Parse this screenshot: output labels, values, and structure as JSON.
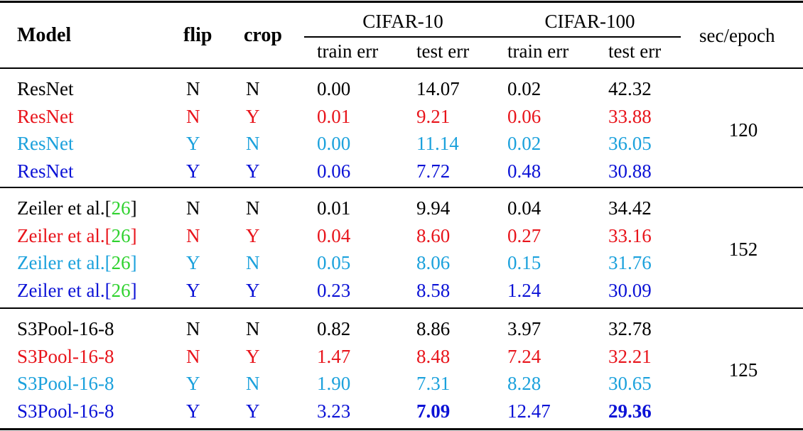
{
  "table": {
    "headers": {
      "model": "Model",
      "flip": "flip",
      "crop": "crop",
      "cifar10": "CIFAR-10",
      "cifar100": "CIFAR-100",
      "train_err": "train err",
      "test_err": "test err",
      "sec_epoch": "sec/epoch"
    },
    "colors": {
      "black": "#000000",
      "red": "#e8141b",
      "cyan": "#1ba1dc",
      "blue": "#0b12d6",
      "citation_green": "#2fd22f"
    },
    "groups": [
      {
        "sec_epoch": "120",
        "rows": [
          {
            "model": "ResNet",
            "cite": "",
            "flip": "N",
            "crop": "N",
            "c10_train": "0.00",
            "c10_test": "14.07",
            "c100_train": "0.02",
            "c100_test": "42.32",
            "color": "black"
          },
          {
            "model": "ResNet",
            "cite": "",
            "flip": "N",
            "crop": "Y",
            "c10_train": "0.01",
            "c10_test": "9.21",
            "c100_train": "0.06",
            "c100_test": "33.88",
            "color": "red"
          },
          {
            "model": "ResNet",
            "cite": "",
            "flip": "Y",
            "crop": "N",
            "c10_train": "0.00",
            "c10_test": "11.14",
            "c100_train": "0.02",
            "c100_test": "36.05",
            "color": "cyan"
          },
          {
            "model": "ResNet",
            "cite": "",
            "flip": "Y",
            "crop": "Y",
            "c10_train": "0.06",
            "c10_test": "7.72",
            "c100_train": "0.48",
            "c100_test": "30.88",
            "color": "blue"
          }
        ]
      },
      {
        "sec_epoch": "152",
        "rows": [
          {
            "model": "Zeiler et al.[",
            "cite": "26",
            "cite_close": "]",
            "flip": "N",
            "crop": "N",
            "c10_train": "0.01",
            "c10_test": "9.94",
            "c100_train": "0.04",
            "c100_test": "34.42",
            "color": "black"
          },
          {
            "model": "Zeiler et al.[",
            "cite": "26",
            "cite_close": "]",
            "flip": "N",
            "crop": "Y",
            "c10_train": "0.04",
            "c10_test": "8.60",
            "c100_train": "0.27",
            "c100_test": "33.16",
            "color": "red"
          },
          {
            "model": "Zeiler et al.[",
            "cite": "26",
            "cite_close": "]",
            "flip": "Y",
            "crop": "N",
            "c10_train": "0.05",
            "c10_test": "8.06",
            "c100_train": "0.15",
            "c100_test": "31.76",
            "color": "cyan"
          },
          {
            "model": "Zeiler et al.[",
            "cite": "26",
            "cite_close": "]",
            "flip": "Y",
            "crop": "Y",
            "c10_train": "0.23",
            "c10_test": "8.58",
            "c100_train": "1.24",
            "c100_test": "30.09",
            "color": "blue"
          }
        ]
      },
      {
        "sec_epoch": "125",
        "rows": [
          {
            "model": "S3Pool-16-8",
            "cite": "",
            "flip": "N",
            "crop": "N",
            "c10_train": "0.82",
            "c10_test": "8.86",
            "c100_train": "3.97",
            "c100_test": "32.78",
            "color": "black"
          },
          {
            "model": "S3Pool-16-8",
            "cite": "",
            "flip": "N",
            "crop": "Y",
            "c10_train": "1.47",
            "c10_test": "8.48",
            "c100_train": "7.24",
            "c100_test": "32.21",
            "color": "red"
          },
          {
            "model": "S3Pool-16-8",
            "cite": "",
            "flip": "Y",
            "crop": "N",
            "c10_train": "1.90",
            "c10_test": "7.31",
            "c100_train": "8.28",
            "c100_test": "30.65",
            "color": "cyan"
          },
          {
            "model": "S3Pool-16-8",
            "cite": "",
            "flip": "Y",
            "crop": "Y",
            "c10_train": "3.23",
            "c10_test": "7.09",
            "c100_train": "12.47",
            "c100_test": "29.36",
            "color": "blue",
            "bold": [
              "c10_test",
              "c100_test"
            ]
          }
        ]
      }
    ]
  }
}
